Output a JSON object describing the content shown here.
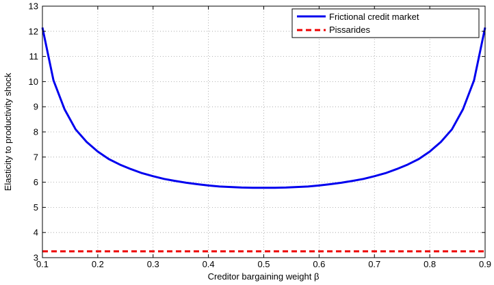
{
  "chart_data": {
    "type": "line",
    "title": "",
    "xlabel": "Creditor bargaining weight β",
    "ylabel": "Elasticity to productivity shock",
    "xlim": [
      0.1,
      0.9
    ],
    "ylim": [
      3,
      13
    ],
    "xticks": [
      0.1,
      0.2,
      0.3,
      0.4,
      0.5,
      0.6,
      0.7,
      0.8,
      0.9
    ],
    "yticks": [
      3,
      4,
      5,
      6,
      7,
      8,
      9,
      10,
      11,
      12,
      13
    ],
    "xtick_labels": [
      "0.1",
      "0.2",
      "0.3",
      "0.4",
      "0.5",
      "0.6",
      "0.7",
      "0.8",
      "0.9"
    ],
    "ytick_labels": [
      "3",
      "4",
      "5",
      "6",
      "7",
      "8",
      "9",
      "10",
      "11",
      "12",
      "13"
    ],
    "grid": true,
    "legend_position": "top-right",
    "series": [
      {
        "name": "Frictional credit market",
        "color": "#0000ee",
        "style": "solid",
        "x": [
          0.1,
          0.12,
          0.14,
          0.16,
          0.18,
          0.2,
          0.22,
          0.24,
          0.26,
          0.28,
          0.3,
          0.32,
          0.34,
          0.36,
          0.38,
          0.4,
          0.42,
          0.44,
          0.46,
          0.48,
          0.5,
          0.52,
          0.54,
          0.56,
          0.58,
          0.6,
          0.62,
          0.64,
          0.66,
          0.68,
          0.7,
          0.72,
          0.74,
          0.76,
          0.78,
          0.8,
          0.82,
          0.84,
          0.86,
          0.88,
          0.9
        ],
        "y": [
          12.15,
          10.05,
          8.9,
          8.1,
          7.6,
          7.22,
          6.92,
          6.7,
          6.52,
          6.36,
          6.24,
          6.13,
          6.05,
          5.98,
          5.92,
          5.87,
          5.83,
          5.81,
          5.79,
          5.78,
          5.78,
          5.78,
          5.79,
          5.81,
          5.83,
          5.87,
          5.92,
          5.98,
          6.05,
          6.13,
          6.24,
          6.36,
          6.52,
          6.7,
          6.92,
          7.22,
          7.6,
          8.1,
          8.9,
          10.05,
          12.15
        ]
      },
      {
        "name": "Pissarides",
        "color": "#ee0000",
        "style": "dashed",
        "x": [
          0.1,
          0.9
        ],
        "y": [
          3.25,
          3.25
        ]
      }
    ]
  }
}
